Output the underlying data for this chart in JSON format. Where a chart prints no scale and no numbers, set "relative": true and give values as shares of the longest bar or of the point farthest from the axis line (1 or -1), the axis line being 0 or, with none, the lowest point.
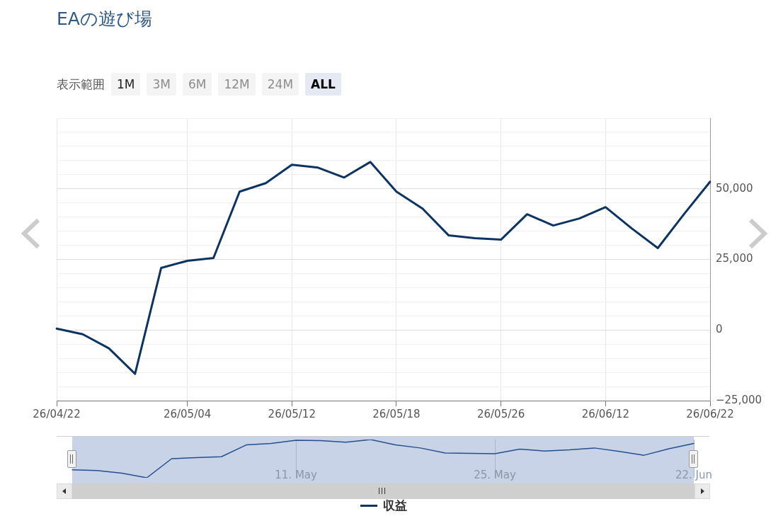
{
  "chart_data": [
    {
      "type": "line",
      "title": "EAの遊び場",
      "annotations": [
        "表示範囲",
        "1M",
        "3M",
        "6M",
        "12M",
        "24M",
        "ALL"
      ],
      "categories": [
        "26/04/22",
        null,
        null,
        null,
        null,
        "26/05/04",
        null,
        null,
        null,
        "26/05/12",
        null,
        null,
        null,
        "26/05/18",
        null,
        null,
        null,
        "26/05/26",
        null,
        null,
        null,
        "26/06/12",
        null,
        null,
        null,
        "26/06/22"
      ],
      "series": [
        {
          "name": "収益",
          "color": "#0d3461",
          "values": [
            500,
            -1500,
            -6500,
            -15500,
            22000,
            24500,
            25500,
            49000,
            52000,
            58500,
            57500,
            54000,
            59500,
            49000,
            43000,
            33500,
            32500,
            32000,
            41000,
            37000,
            39500,
            43500,
            36000,
            29000,
            41000,
            52500
          ]
        }
      ],
      "ylim": [
        -25000,
        75000
      ],
      "yticks": [
        {
          "value": -25000,
          "label": "−25,000"
        },
        {
          "value": -20000,
          "label": null
        },
        {
          "value": -15000,
          "label": null
        },
        {
          "value": -10000,
          "label": null
        },
        {
          "value": -5000,
          "label": null
        },
        {
          "value": 0,
          "label": "0"
        },
        {
          "value": 5000,
          "label": null
        },
        {
          "value": 10000,
          "label": null
        },
        {
          "value": 15000,
          "label": null
        },
        {
          "value": 20000,
          "label": null
        },
        {
          "value": 25000,
          "label": "25,000"
        },
        {
          "value": 30000,
          "label": null
        },
        {
          "value": 35000,
          "label": null
        },
        {
          "value": 40000,
          "label": null
        },
        {
          "value": 45000,
          "label": null
        },
        {
          "value": 50000,
          "label": "50,000"
        },
        {
          "value": 55000,
          "label": null
        },
        {
          "value": 60000,
          "label": null
        },
        {
          "value": 65000,
          "label": null
        },
        {
          "value": 70000,
          "label": null
        },
        {
          "value": 75000,
          "label": null
        }
      ],
      "grid": true,
      "legend": "bottom",
      "marker": "none",
      "line_style": "solid"
    },
    {
      "type": "line",
      "relative": true,
      "categories": [
        null,
        null,
        null,
        null,
        null,
        null,
        null,
        null,
        null,
        "11. May",
        null,
        null,
        null,
        null,
        null,
        null,
        null,
        "25. May",
        null,
        null,
        null,
        null,
        null,
        null,
        null,
        "22. Jun"
      ],
      "series": [
        {
          "color": "#24508f",
          "values": [
            0.21,
            0.19,
            0.12,
            0,
            0.5,
            0.53,
            0.55,
            0.86,
            0.9,
            0.98,
            0.97,
            0.93,
            1,
            0.86,
            0.78,
            0.65,
            0.64,
            0.63,
            0.75,
            0.7,
            0.73,
            0.78,
            0.69,
            0.59,
            0.76,
            0.9
          ]
        }
      ],
      "grid": "x",
      "legend": false,
      "marker": "none",
      "line_style": "solid"
    }
  ]
}
